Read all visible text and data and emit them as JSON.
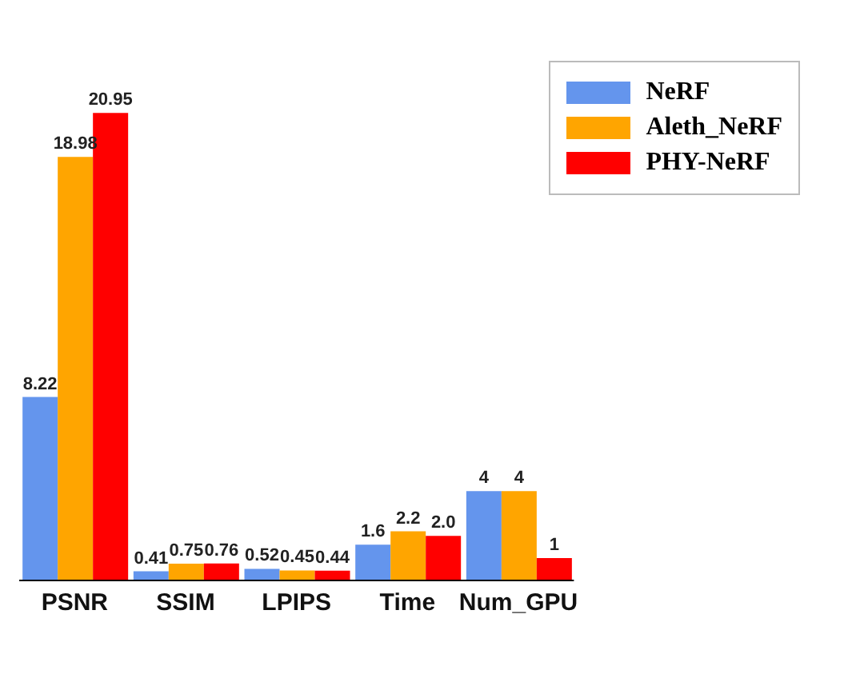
{
  "chart_data": {
    "type": "bar",
    "categories": [
      "PSNR",
      "SSIM",
      "LPIPS",
      "Time",
      "Num_GPU"
    ],
    "series": [
      {
        "name": "NeRF",
        "color": "#6495ed",
        "values": [
          8.22,
          0.41,
          0.52,
          1.6,
          4
        ],
        "value_labels": [
          "8.22",
          "0.41",
          "0.52",
          "1.6",
          "4"
        ]
      },
      {
        "name": "Aleth_NeRF",
        "color": "#ffa500",
        "values": [
          18.98,
          0.75,
          0.45,
          2.2,
          4
        ],
        "value_labels": [
          "18.98",
          "0.75",
          "0.45",
          "2.2",
          "4"
        ]
      },
      {
        "name": "PHY-NeRF",
        "color": "#ff0000",
        "values": [
          20.95,
          0.76,
          0.44,
          2.0,
          1
        ],
        "value_labels": [
          "20.95",
          "0.76",
          "0.44",
          "2.0",
          "1"
        ]
      }
    ],
    "legend": "top right",
    "grid": false
  }
}
